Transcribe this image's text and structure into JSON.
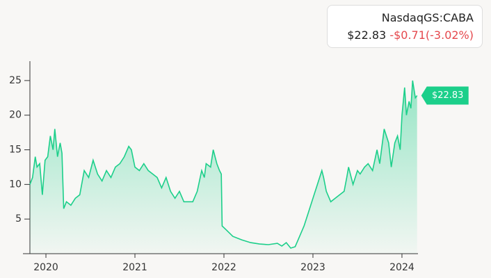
{
  "header": {
    "ticker": "NasdaqGS:CABA",
    "price": "$22.83",
    "change": "-$0.71(-3.02%)"
  },
  "chart_data": {
    "type": "line",
    "color": "#1ccf8a",
    "x": [
      2019.82,
      2019.85,
      2019.88,
      2019.9,
      2019.93,
      2019.96,
      2019.99,
      2020.02,
      2020.05,
      2020.08,
      2020.1,
      2020.13,
      2020.16,
      2020.18,
      2020.2,
      2020.23,
      2020.28,
      2020.33,
      2020.38,
      2020.43,
      2020.48,
      2020.53,
      2020.58,
      2020.63,
      2020.68,
      2020.73,
      2020.78,
      2020.83,
      2020.88,
      2020.93,
      2020.96,
      2021.0,
      2021.05,
      2021.1,
      2021.15,
      2021.2,
      2021.25,
      2021.3,
      2021.35,
      2021.4,
      2021.45,
      2021.5,
      2021.55,
      2021.6,
      2021.65,
      2021.7,
      2021.75,
      2021.78,
      2021.8,
      2021.85,
      2021.88,
      2021.92,
      2021.95,
      2021.97,
      2021.98,
      2022.02,
      2022.1,
      2022.2,
      2022.3,
      2022.4,
      2022.5,
      2022.6,
      2022.65,
      2022.7,
      2022.75,
      2022.8,
      2022.85,
      2022.9,
      2022.95,
      2023.0,
      2023.05,
      2023.1,
      2023.12,
      2023.15,
      2023.2,
      2023.25,
      2023.3,
      2023.35,
      2023.38,
      2023.4,
      2023.45,
      2023.5,
      2023.53,
      2023.58,
      2023.62,
      2023.67,
      2023.72,
      2023.75,
      2023.78,
      2023.8,
      2023.85,
      2023.88,
      2023.92,
      2023.95,
      2023.98,
      2024.0,
      2024.03,
      2024.05,
      2024.08,
      2024.1,
      2024.12,
      2024.15,
      2024.17
    ],
    "values": [
      10,
      11,
      14,
      12.5,
      13,
      8.5,
      13.5,
      14,
      17,
      15,
      18,
      14,
      16,
      14.5,
      6.5,
      7.5,
      7,
      8,
      8.5,
      12,
      11,
      13.5,
      11.5,
      10.5,
      12,
      11,
      12.5,
      13,
      14,
      15.5,
      15,
      12.5,
      12,
      13,
      12,
      11.5,
      11,
      9.5,
      11,
      9,
      8,
      9,
      7.5,
      7.5,
      7.5,
      9,
      12,
      11,
      13,
      12.5,
      15,
      13,
      12,
      11.5,
      4,
      3.5,
      2.5,
      2,
      1.6,
      1.4,
      1.3,
      1.5,
      1.1,
      1.6,
      0.8,
      1,
      2.5,
      4,
      6,
      8,
      10,
      12,
      11,
      9,
      7.5,
      8,
      8.5,
      9,
      11,
      12.5,
      10,
      12,
      11.5,
      12.5,
      13,
      12,
      15,
      13,
      16,
      18,
      16,
      12.5,
      16,
      17,
      15,
      20,
      24,
      20,
      22,
      21,
      25,
      22.5,
      22.83
    ],
    "xlim": [
      2019.82,
      2024.18
    ],
    "ylim": [
      0,
      27.8
    ],
    "xticks": [
      2020,
      2021,
      2022,
      2023,
      2024
    ],
    "yticks": [
      5,
      10,
      15,
      20,
      25
    ]
  }
}
